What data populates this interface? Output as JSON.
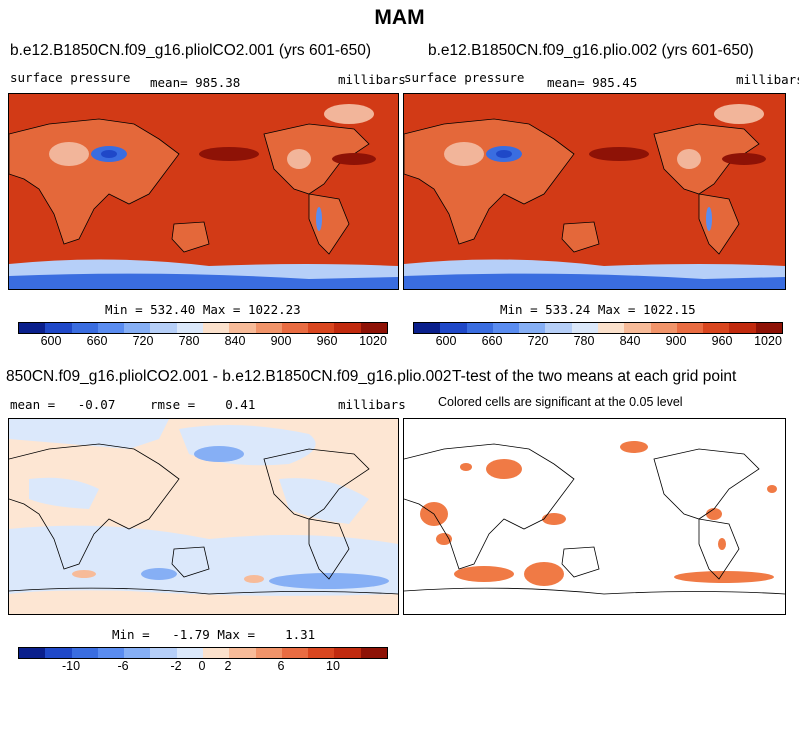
{
  "suptitle": "MAM",
  "panels": [
    {
      "title": "b.e12.B1850CN.f09_g16.pliolCO2.001 (yrs 601-650)",
      "left_label": "surface pressure",
      "center_label": "mean= 985.38",
      "right_label": "millibars",
      "stats": "Min = 532.40 Max = 1022.23"
    },
    {
      "title": "b.e12.B1850CN.f09_g16.plio.002 (yrs 601-650)",
      "left_label": "surface pressure",
      "center_label": "mean= 985.45",
      "right_label": "millibars",
      "stats": "Min = 533.24 Max = 1022.15"
    },
    {
      "title": "850CN.f09_g16.pliolCO2.001 - b.e12.B1850CN.f09_g16.plio.002",
      "left_label": "mean =   -0.07",
      "center_label": "rmse =    0.41",
      "right_label": "millibars",
      "stats": "Min =   -1.79 Max =    1.31"
    },
    {
      "title": "T-test of the two means at each grid point",
      "subtitle": "Colored cells are significant at the 0.05 level"
    }
  ],
  "colorbar_abs": {
    "colors": [
      "#0a1f8c",
      "#1f48c8",
      "#3a6de0",
      "#5a8cf0",
      "#86aff5",
      "#b6cff8",
      "#dbe8fa",
      "#fbe1cc",
      "#f7bb99",
      "#f1946a",
      "#e96c42",
      "#d9461f",
      "#c12a0e",
      "#8e1206"
    ],
    "ticks": [
      "600",
      "660",
      "720",
      "780",
      "840",
      "900",
      "960",
      "1020"
    ]
  },
  "colorbar_diff": {
    "colors": [
      "#0a1f8c",
      "#1f48c8",
      "#3a6de0",
      "#5a8cf0",
      "#86aff5",
      "#b6cff8",
      "#dbe8fa",
      "#fbe1cc",
      "#f7bb99",
      "#f1946a",
      "#e96c42",
      "#d9461f",
      "#c12a0e",
      "#8e1206"
    ],
    "ticks": [
      "-10",
      "-6",
      "-2",
      "0",
      "2",
      "6",
      "10"
    ]
  },
  "colors": {
    "ocean_high": "#d23a16",
    "diff_pos": "#fde6d3",
    "diff_neg": "#dbe8fb",
    "signif": "#f07a45"
  }
}
